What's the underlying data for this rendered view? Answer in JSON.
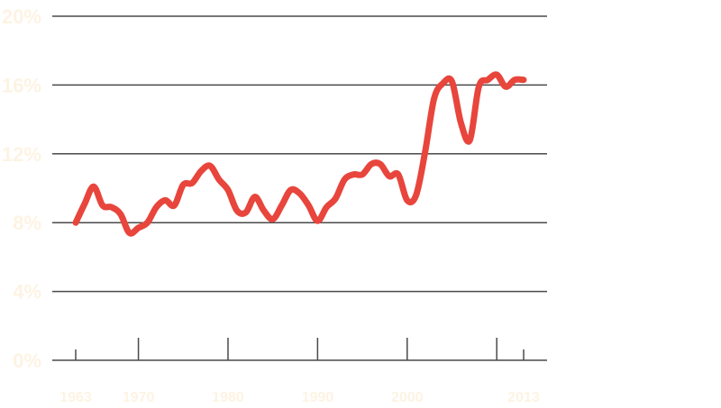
{
  "chart_data": {
    "type": "line",
    "title": "",
    "xlabel": "",
    "ylabel": "",
    "xlim": [
      1963,
      2013
    ],
    "ylim": [
      0,
      20
    ],
    "y_ticks": [
      0,
      4,
      8,
      12,
      16,
      20
    ],
    "y_tick_labels": [
      "0%",
      "4%",
      "8%",
      "12%",
      "16%",
      "20%"
    ],
    "x_ticks": [
      1963,
      1970,
      1980,
      1990,
      2000,
      2010,
      2013
    ],
    "x_tick_labels": [
      "1963",
      "1970",
      "1980",
      "1990",
      "2000",
      "",
      "2013"
    ],
    "grid": "horizontal",
    "colors": {
      "line": "#e8453c",
      "grid": "#4a4a4a",
      "labels": "#fdf3e3"
    },
    "series": [
      {
        "x": [
          1963,
          1964,
          1965,
          1966,
          1967,
          1968,
          1969,
          1970,
          1971,
          1972,
          1973,
          1974,
          1975,
          1976,
          1977,
          1978,
          1979,
          1980,
          1981,
          1982,
          1983,
          1984,
          1985,
          1986,
          1987,
          1988,
          1989,
          1990,
          1991,
          1992,
          1993,
          1994,
          1995,
          1996,
          1997,
          1998,
          1999,
          2000,
          2001,
          2002,
          2003,
          2004,
          2005,
          2006,
          2007,
          2008,
          2009,
          2010,
          2011,
          2012,
          2013
        ],
        "values": [
          8.0,
          9.1,
          10.1,
          9.0,
          8.9,
          8.5,
          7.4,
          7.7,
          8.0,
          8.9,
          9.3,
          9.0,
          10.2,
          10.3,
          11.0,
          11.3,
          10.5,
          9.9,
          8.7,
          8.6,
          9.5,
          8.7,
          8.2,
          9.0,
          9.9,
          9.7,
          9.0,
          8.1,
          8.9,
          9.4,
          10.5,
          10.8,
          10.8,
          11.4,
          11.4,
          10.7,
          10.8,
          9.3,
          9.6,
          12.1,
          15.2,
          16.1,
          16.2,
          13.8,
          12.8,
          15.9,
          16.3,
          16.6,
          15.9,
          16.3,
          16.3
        ]
      }
    ]
  }
}
